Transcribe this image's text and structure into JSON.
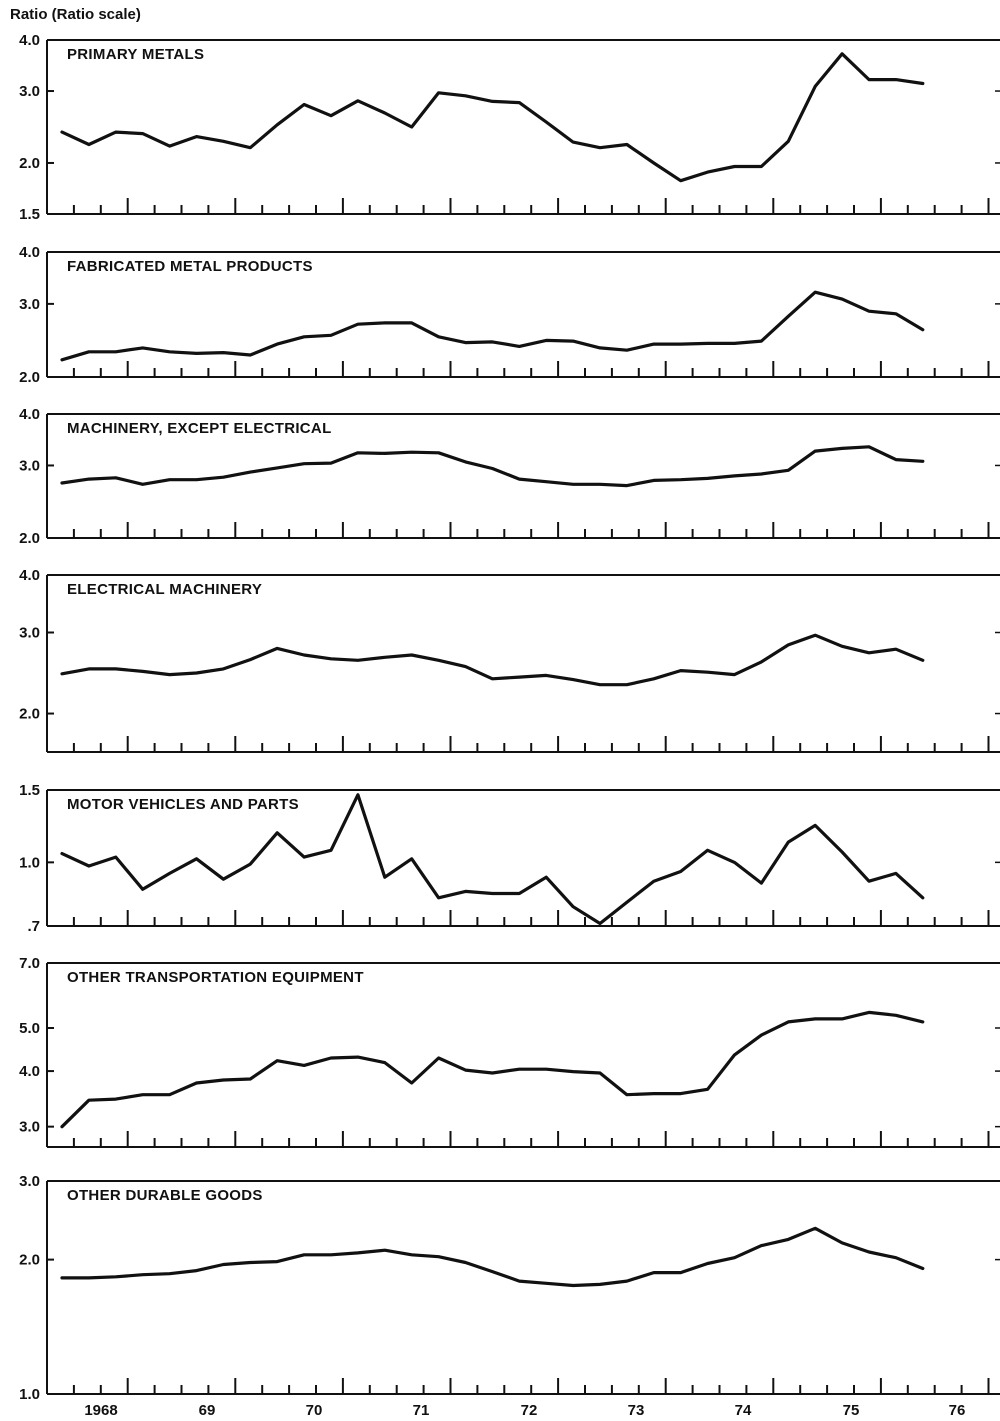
{
  "figure": {
    "y_axis_label": "Ratio (Ratio scale)",
    "x_axis_labels": [
      "1968",
      "69",
      "70",
      "71",
      "72",
      "73",
      "74",
      "75",
      "76"
    ]
  },
  "chart_data": [
    {
      "type": "line",
      "title": "PRIMARY METALS",
      "scale": "log",
      "ylim": [
        1.5,
        4.0
      ],
      "yticks": [
        {
          "v": 4.0,
          "label": "4.0"
        },
        {
          "v": 3.0,
          "label": "3.0"
        },
        {
          "v": 2.0,
          "label": "2.0"
        },
        {
          "v": 1.5,
          "label": "1.5"
        }
      ],
      "x": [
        "1967Q4",
        "1968Q1",
        "1968Q2",
        "1968Q3",
        "1968Q4",
        "1969Q1",
        "1969Q2",
        "1969Q3",
        "1969Q4",
        "1970Q1",
        "1970Q2",
        "1970Q3",
        "1970Q4",
        "1971Q1",
        "1971Q2",
        "1971Q3",
        "1971Q4",
        "1972Q1",
        "1972Q2",
        "1972Q3",
        "1972Q4",
        "1973Q1",
        "1973Q2",
        "1973Q3",
        "1973Q4",
        "1974Q1",
        "1974Q2",
        "1974Q3",
        "1974Q4",
        "1975Q1",
        "1975Q2",
        "1975Q3",
        "1975Q4"
      ],
      "values": [
        2.38,
        2.22,
        2.38,
        2.36,
        2.2,
        2.32,
        2.26,
        2.18,
        2.48,
        2.78,
        2.61,
        2.84,
        2.65,
        2.45,
        2.97,
        2.92,
        2.83,
        2.81,
        2.52,
        2.25,
        2.18,
        2.22,
        2.0,
        1.81,
        1.9,
        1.96,
        1.96,
        2.26,
        3.08,
        3.7,
        3.2,
        3.2,
        3.13
      ]
    },
    {
      "type": "line",
      "title": "FABRICATED METAL PRODUCTS",
      "scale": "log",
      "ylim": [
        2.0,
        4.0
      ],
      "yticks": [
        {
          "v": 4.0,
          "label": "4.0"
        },
        {
          "v": 3.0,
          "label": "3.0"
        },
        {
          "v": 2.0,
          "label": "2.0"
        }
      ],
      "x": [
        "1967Q4",
        "1968Q1",
        "1968Q2",
        "1968Q3",
        "1968Q4",
        "1969Q1",
        "1969Q2",
        "1969Q3",
        "1969Q4",
        "1970Q1",
        "1970Q2",
        "1970Q3",
        "1970Q4",
        "1971Q1",
        "1971Q2",
        "1971Q3",
        "1971Q4",
        "1972Q1",
        "1972Q2",
        "1972Q3",
        "1972Q4",
        "1973Q1",
        "1973Q2",
        "1973Q3",
        "1973Q4",
        "1974Q1",
        "1974Q2",
        "1974Q3",
        "1974Q4",
        "1975Q1",
        "1975Q2",
        "1975Q3",
        "1975Q4"
      ],
      "values": [
        2.2,
        2.3,
        2.3,
        2.35,
        2.3,
        2.28,
        2.29,
        2.26,
        2.4,
        2.5,
        2.52,
        2.68,
        2.7,
        2.7,
        2.5,
        2.42,
        2.43,
        2.37,
        2.45,
        2.44,
        2.35,
        2.32,
        2.4,
        2.4,
        2.41,
        2.41,
        2.44,
        2.8,
        3.2,
        3.08,
        2.88,
        2.84,
        2.6
      ]
    },
    {
      "type": "line",
      "title": "MACHINERY, EXCEPT ELECTRICAL",
      "scale": "log",
      "ylim": [
        2.0,
        4.0
      ],
      "yticks": [
        {
          "v": 4.0,
          "label": "4.0"
        },
        {
          "v": 3.0,
          "label": "3.0"
        },
        {
          "v": 2.0,
          "label": "2.0"
        }
      ],
      "x": [
        "1967Q4",
        "1968Q1",
        "1968Q2",
        "1968Q3",
        "1968Q4",
        "1969Q1",
        "1969Q2",
        "1969Q3",
        "1969Q4",
        "1970Q1",
        "1970Q2",
        "1970Q3",
        "1970Q4",
        "1971Q1",
        "1971Q2",
        "1971Q3",
        "1971Q4",
        "1972Q1",
        "1972Q2",
        "1972Q3",
        "1972Q4",
        "1973Q1",
        "1973Q2",
        "1973Q3",
        "1973Q4",
        "1974Q1",
        "1974Q2",
        "1974Q3",
        "1974Q4",
        "1975Q1",
        "1975Q2",
        "1975Q3",
        "1975Q4"
      ],
      "values": [
        2.72,
        2.78,
        2.8,
        2.7,
        2.77,
        2.77,
        2.81,
        2.89,
        2.96,
        3.03,
        3.04,
        3.22,
        3.21,
        3.23,
        3.22,
        3.06,
        2.95,
        2.78,
        2.74,
        2.7,
        2.7,
        2.68,
        2.76,
        2.77,
        2.79,
        2.83,
        2.86,
        2.92,
        3.25,
        3.3,
        3.33,
        3.1,
        3.07
      ]
    },
    {
      "type": "line",
      "title": "ELECTRICAL MACHINERY",
      "scale": "log",
      "ylim": [
        1.65,
        4.0
      ],
      "yticks": [
        {
          "v": 4.0,
          "label": "4.0"
        },
        {
          "v": 3.0,
          "label": "3.0"
        },
        {
          "v": 2.0,
          "label": "2.0"
        }
      ],
      "x": [
        "1967Q4",
        "1968Q1",
        "1968Q2",
        "1968Q3",
        "1968Q4",
        "1969Q1",
        "1969Q2",
        "1969Q3",
        "1969Q4",
        "1970Q1",
        "1970Q2",
        "1970Q3",
        "1970Q4",
        "1971Q1",
        "1971Q2",
        "1971Q3",
        "1971Q4",
        "1972Q1",
        "1972Q2",
        "1972Q3",
        "1972Q4",
        "1973Q1",
        "1973Q2",
        "1973Q3",
        "1973Q4",
        "1974Q1",
        "1974Q2",
        "1974Q3",
        "1974Q4",
        "1975Q1",
        "1975Q2",
        "1975Q3",
        "1975Q4"
      ],
      "values": [
        2.44,
        2.5,
        2.5,
        2.47,
        2.43,
        2.45,
        2.5,
        2.62,
        2.77,
        2.68,
        2.63,
        2.61,
        2.65,
        2.68,
        2.61,
        2.53,
        2.38,
        2.4,
        2.42,
        2.37,
        2.31,
        2.31,
        2.38,
        2.48,
        2.46,
        2.43,
        2.59,
        2.82,
        2.96,
        2.8,
        2.71,
        2.76,
        2.61
      ]
    },
    {
      "type": "line",
      "title": "MOTOR VEHICLES AND PARTS",
      "scale": "log",
      "ylim": [
        0.7,
        1.5
      ],
      "yticks": [
        {
          "v": 1.5,
          "label": "1.5"
        },
        {
          "v": 1.0,
          "label": "1.0"
        },
        {
          "v": 0.7,
          "label": ".7"
        }
      ],
      "x": [
        "1967Q4",
        "1968Q1",
        "1968Q2",
        "1968Q3",
        "1968Q4",
        "1969Q1",
        "1969Q2",
        "1969Q3",
        "1969Q4",
        "1970Q1",
        "1970Q2",
        "1970Q3",
        "1970Q4",
        "1971Q1",
        "1971Q2",
        "1971Q3",
        "1971Q4",
        "1972Q1",
        "1972Q2",
        "1972Q3",
        "1972Q4",
        "1973Q1",
        "1973Q2",
        "1973Q3",
        "1973Q4",
        "1974Q1",
        "1974Q2",
        "1974Q3",
        "1974Q4",
        "1975Q1",
        "1975Q2",
        "1975Q3",
        "1975Q4"
      ],
      "values": [
        1.05,
        0.98,
        1.03,
        0.86,
        0.94,
        1.02,
        0.91,
        0.99,
        1.18,
        1.03,
        1.07,
        1.46,
        0.92,
        1.02,
        0.82,
        0.85,
        0.84,
        0.84,
        0.92,
        0.78,
        0.71,
        0.8,
        0.9,
        0.95,
        1.07,
        1.0,
        0.89,
        1.12,
        1.23,
        1.06,
        0.9,
        0.94,
        0.82
      ]
    },
    {
      "type": "line",
      "title": "OTHER TRANSPORTATION EQUIPMENT",
      "scale": "log",
      "ylim": [
        2.7,
        7.0
      ],
      "yticks": [
        {
          "v": 7.0,
          "label": "7.0"
        },
        {
          "v": 5.0,
          "label": "5.0"
        },
        {
          "v": 4.0,
          "label": "4.0"
        },
        {
          "v": 3.0,
          "label": "3.0"
        }
      ],
      "x": [
        "1967Q4",
        "1968Q1",
        "1968Q2",
        "1968Q3",
        "1968Q4",
        "1969Q1",
        "1969Q2",
        "1969Q3",
        "1969Q4",
        "1970Q1",
        "1970Q2",
        "1970Q3",
        "1970Q4",
        "1971Q1",
        "1971Q2",
        "1971Q3",
        "1971Q4",
        "1972Q1",
        "1972Q2",
        "1972Q3",
        "1972Q4",
        "1973Q1",
        "1973Q2",
        "1973Q3",
        "1973Q4",
        "1974Q1",
        "1974Q2",
        "1974Q3",
        "1974Q4",
        "1975Q1",
        "1975Q2",
        "1975Q3",
        "1975Q4"
      ],
      "values": [
        3.0,
        3.44,
        3.46,
        3.54,
        3.54,
        3.76,
        3.82,
        3.84,
        4.22,
        4.12,
        4.28,
        4.3,
        4.18,
        3.76,
        4.28,
        4.02,
        3.96,
        4.04,
        4.04,
        3.99,
        3.96,
        3.54,
        3.56,
        3.56,
        3.64,
        4.35,
        4.82,
        5.16,
        5.24,
        5.24,
        5.42,
        5.34,
        5.16
      ]
    },
    {
      "type": "line",
      "title": "OTHER DURABLE GOODS",
      "scale": "log",
      "ylim": [
        1.0,
        3.0
      ],
      "yticks": [
        {
          "v": 3.0,
          "label": "3.0"
        },
        {
          "v": 2.0,
          "label": "2.0"
        },
        {
          "v": 1.0,
          "label": "1.0"
        }
      ],
      "x": [
        "1967Q4",
        "1968Q1",
        "1968Q2",
        "1968Q3",
        "1968Q4",
        "1969Q1",
        "1969Q2",
        "1969Q3",
        "1969Q4",
        "1970Q1",
        "1970Q2",
        "1970Q3",
        "1970Q4",
        "1971Q1",
        "1971Q2",
        "1971Q3",
        "1971Q4",
        "1972Q1",
        "1972Q2",
        "1972Q3",
        "1972Q4",
        "1973Q1",
        "1973Q2",
        "1973Q3",
        "1973Q4",
        "1974Q1",
        "1974Q2",
        "1974Q3",
        "1974Q4",
        "1975Q1",
        "1975Q2",
        "1975Q3",
        "1975Q4"
      ],
      "values": [
        1.82,
        1.82,
        1.83,
        1.85,
        1.86,
        1.89,
        1.95,
        1.97,
        1.98,
        2.05,
        2.05,
        2.07,
        2.1,
        2.05,
        2.03,
        1.97,
        1.88,
        1.79,
        1.77,
        1.75,
        1.76,
        1.79,
        1.87,
        1.87,
        1.96,
        2.02,
        2.15,
        2.22,
        2.35,
        2.18,
        2.08,
        2.02,
        1.91
      ]
    }
  ]
}
